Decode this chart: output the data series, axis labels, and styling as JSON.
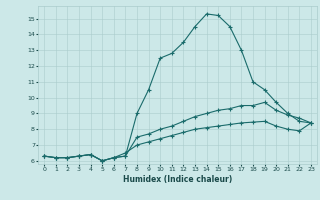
{
  "title": "",
  "xlabel": "Humidex (Indice chaleur)",
  "xlim": [
    -0.5,
    23.5
  ],
  "ylim": [
    5.8,
    15.8
  ],
  "yticks": [
    6,
    7,
    8,
    9,
    10,
    11,
    12,
    13,
    14,
    15
  ],
  "xticks": [
    0,
    1,
    2,
    3,
    4,
    5,
    6,
    7,
    8,
    9,
    10,
    11,
    12,
    13,
    14,
    15,
    16,
    17,
    18,
    19,
    20,
    21,
    22,
    23
  ],
  "background_color": "#cce8e8",
  "grid_color": "#aacccc",
  "line_color": "#1a6b6b",
  "line1_x": [
    0,
    1,
    2,
    3,
    4,
    5,
    6,
    7,
    8,
    9,
    10,
    11,
    12,
    13,
    14,
    15,
    16,
    17,
    18,
    19,
    20,
    21,
    22,
    23
  ],
  "line1_y": [
    6.3,
    6.2,
    6.2,
    6.3,
    6.4,
    6.0,
    6.2,
    6.3,
    9.0,
    10.5,
    12.5,
    12.8,
    13.5,
    14.5,
    15.3,
    15.2,
    14.5,
    13.0,
    11.0,
    10.5,
    9.7,
    9.0,
    8.5,
    8.4
  ],
  "line2_x": [
    0,
    1,
    2,
    3,
    4,
    5,
    6,
    7,
    8,
    9,
    10,
    11,
    12,
    13,
    14,
    15,
    16,
    17,
    18,
    19,
    20,
    21,
    22,
    23
  ],
  "line2_y": [
    6.3,
    6.2,
    6.2,
    6.3,
    6.4,
    6.0,
    6.2,
    6.3,
    7.5,
    7.7,
    8.0,
    8.2,
    8.5,
    8.8,
    9.0,
    9.2,
    9.3,
    9.5,
    9.5,
    9.7,
    9.2,
    8.9,
    8.7,
    8.4
  ],
  "line3_x": [
    0,
    1,
    2,
    3,
    4,
    5,
    6,
    7,
    8,
    9,
    10,
    11,
    12,
    13,
    14,
    15,
    16,
    17,
    18,
    19,
    20,
    21,
    22,
    23
  ],
  "line3_y": [
    6.3,
    6.2,
    6.2,
    6.3,
    6.4,
    6.0,
    6.2,
    6.5,
    7.0,
    7.2,
    7.4,
    7.6,
    7.8,
    8.0,
    8.1,
    8.2,
    8.3,
    8.4,
    8.45,
    8.5,
    8.2,
    8.0,
    7.9,
    8.4
  ]
}
